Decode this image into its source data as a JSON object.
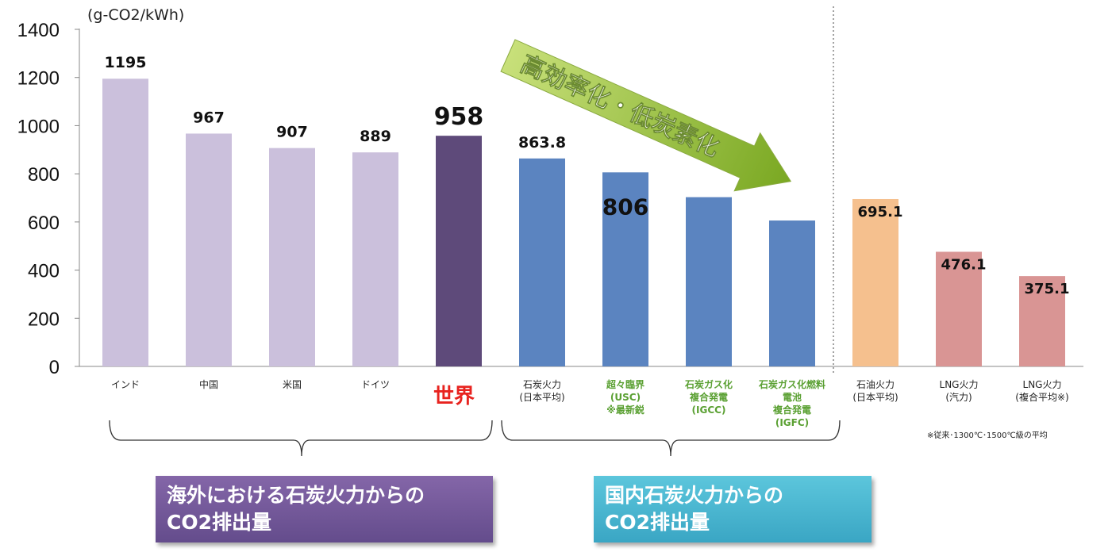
{
  "chart_data": {
    "type": "bar",
    "unit_label": "(g-CO2/kWh)",
    "ylim": [
      0,
      1400
    ],
    "yticks": [
      "0",
      "200",
      "400",
      "600",
      "800",
      "1000",
      "1200",
      "1400"
    ],
    "categories": [
      {
        "label": [
          "インド"
        ],
        "value": 1195,
        "value_label": "1195",
        "color": "#cbc0dc",
        "label_color": "#222222"
      },
      {
        "label": [
          "中国"
        ],
        "value": 967,
        "value_label": "967",
        "color": "#cbc0dc",
        "label_color": "#222222"
      },
      {
        "label": [
          "米国"
        ],
        "value": 907,
        "value_label": "907",
        "color": "#cbc0dc",
        "label_color": "#222222"
      },
      {
        "label": [
          "ドイツ"
        ],
        "value": 889,
        "value_label": "889",
        "color": "#cbc0dc",
        "label_color": "#222222"
      },
      {
        "label": [
          "世界"
        ],
        "value": 958,
        "value_label": "958",
        "color": "#5e4a7a",
        "label_color": "#e8231f",
        "big": true
      },
      {
        "label": [
          "石炭火力",
          "(日本平均)"
        ],
        "value": 863.8,
        "value_label": "863.8",
        "color": "#5b84c0",
        "label_color": "#222222"
      },
      {
        "label": [
          "超々臨界",
          "(USC)",
          "※最新鋭"
        ],
        "value": 806,
        "value_label": "806",
        "color": "#5b84c0",
        "label_color": "#5aa032",
        "inside": true
      },
      {
        "label": [
          "石炭ガス化",
          "複合発電",
          "(IGCC)"
        ],
        "value": 703,
        "value_label": null,
        "color": "#5b84c0",
        "label_color": "#5aa032"
      },
      {
        "label": [
          "石炭ガス化燃料",
          "電池",
          "複合発電",
          "(IGFC)"
        ],
        "value": 606,
        "value_label": null,
        "color": "#5b84c0",
        "label_color": "#5aa032"
      },
      {
        "label": [
          "石油火力",
          "(日本平均)"
        ],
        "value": 695.1,
        "value_label": "695.1",
        "color": "#f5c08e",
        "label_color": "#222222"
      },
      {
        "label": [
          "LNG火力",
          "(汽力)"
        ],
        "value": 476.1,
        "value_label": "476.1",
        "color": "#d99594",
        "label_color": "#222222"
      },
      {
        "label": [
          "LNG火力",
          "(複合平均※)"
        ],
        "value": 375.1,
        "value_label": "375.1",
        "color": "#d99594",
        "label_color": "#222222"
      }
    ],
    "arrow_label": "高効率化・低炭素化",
    "footnote": "※従来･1300℃･1500℃級の平均"
  },
  "groups": {
    "overseas": [
      "海外における石炭火力からの",
      "CO2排出量"
    ],
    "domestic": [
      "国内石炭火力からの",
      "CO2排出量"
    ]
  }
}
